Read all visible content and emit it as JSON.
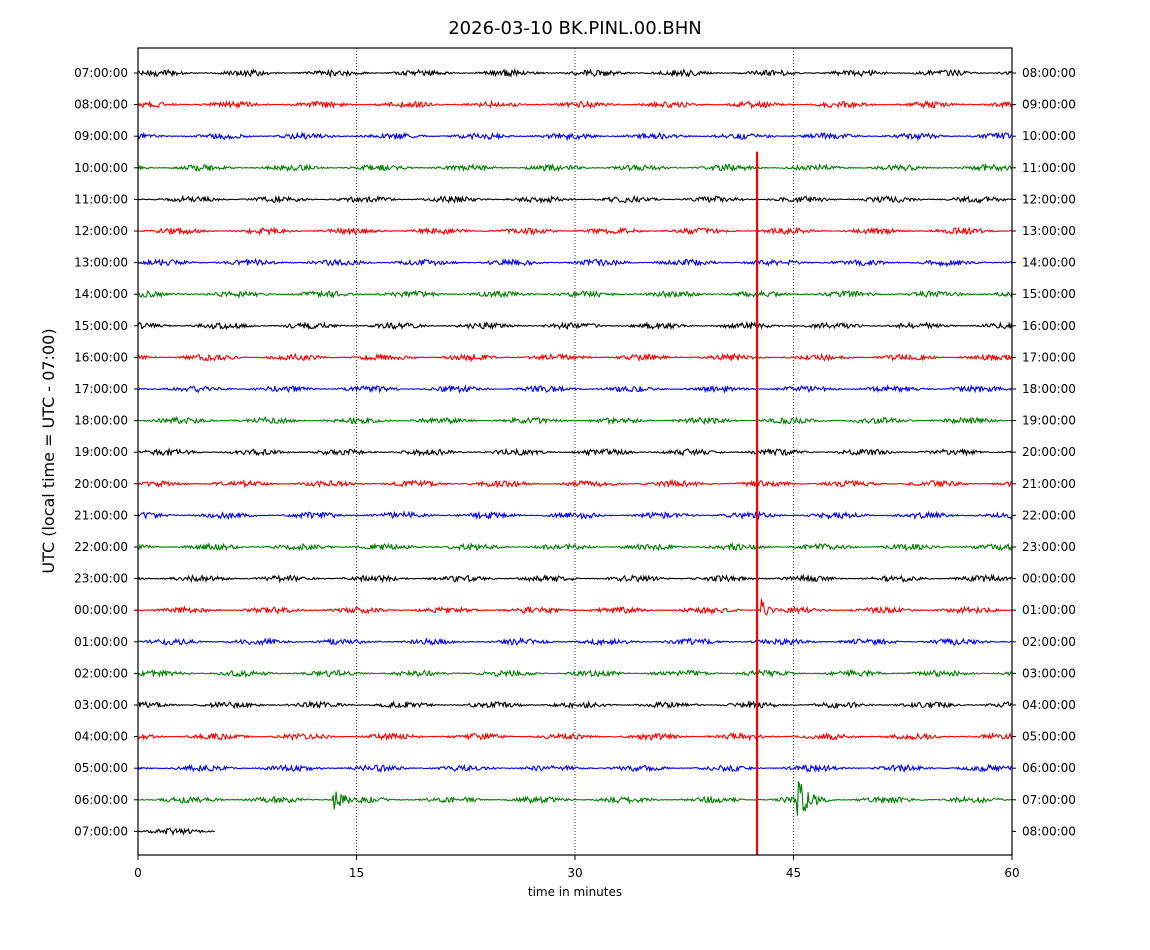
{
  "chart_data": {
    "type": "line",
    "title": "2026-03-10 BK.PINL.00.BHN",
    "xlabel": "time in minutes",
    "ylabel": "UTC (local time = UTC - 07:00)",
    "xlim": [
      0,
      60
    ],
    "xticks": [
      "0",
      "15",
      "30",
      "45",
      "60"
    ],
    "grid": "vertical dotted at 15, 30, 45",
    "trace_colors": [
      "#000000",
      "#ff0000",
      "#0000ff",
      "#008000"
    ],
    "event_marker": {
      "x_minutes": 42.5,
      "color": "#ff0000",
      "from_row": 3,
      "to_row": 25
    },
    "rows": [
      {
        "left": "07:00:00",
        "right": "08:00:00",
        "color": "#000000",
        "end_min": 60
      },
      {
        "left": "08:00:00",
        "right": "09:00:00",
        "color": "#ff0000",
        "end_min": 60
      },
      {
        "left": "09:00:00",
        "right": "10:00:00",
        "color": "#0000ff",
        "end_min": 60
      },
      {
        "left": "10:00:00",
        "right": "11:00:00",
        "color": "#008000",
        "end_min": 60
      },
      {
        "left": "11:00:00",
        "right": "12:00:00",
        "color": "#000000",
        "end_min": 60
      },
      {
        "left": "12:00:00",
        "right": "13:00:00",
        "color": "#ff0000",
        "end_min": 60
      },
      {
        "left": "13:00:00",
        "right": "14:00:00",
        "color": "#0000ff",
        "end_min": 60
      },
      {
        "left": "14:00:00",
        "right": "15:00:00",
        "color": "#008000",
        "end_min": 60
      },
      {
        "left": "15:00:00",
        "right": "16:00:00",
        "color": "#000000",
        "end_min": 60
      },
      {
        "left": "16:00:00",
        "right": "17:00:00",
        "color": "#ff0000",
        "end_min": 60
      },
      {
        "left": "17:00:00",
        "right": "18:00:00",
        "color": "#0000ff",
        "end_min": 60
      },
      {
        "left": "18:00:00",
        "right": "19:00:00",
        "color": "#008000",
        "end_min": 60
      },
      {
        "left": "19:00:00",
        "right": "20:00:00",
        "color": "#000000",
        "end_min": 60
      },
      {
        "left": "20:00:00",
        "right": "21:00:00",
        "color": "#ff0000",
        "end_min": 60
      },
      {
        "left": "21:00:00",
        "right": "22:00:00",
        "color": "#0000ff",
        "end_min": 60
      },
      {
        "left": "22:00:00",
        "right": "23:00:00",
        "color": "#008000",
        "end_min": 60
      },
      {
        "left": "23:00:00",
        "right": "00:00:00",
        "color": "#000000",
        "end_min": 60
      },
      {
        "left": "00:00:00",
        "right": "01:00:00",
        "color": "#ff0000",
        "end_min": 60,
        "bursts": [
          {
            "t": 42.8,
            "amp": 2.2,
            "dur": 1.0
          }
        ]
      },
      {
        "left": "01:00:00",
        "right": "02:00:00",
        "color": "#0000ff",
        "end_min": 60
      },
      {
        "left": "02:00:00",
        "right": "03:00:00",
        "color": "#008000",
        "end_min": 60
      },
      {
        "left": "03:00:00",
        "right": "04:00:00",
        "color": "#000000",
        "end_min": 60
      },
      {
        "left": "04:00:00",
        "right": "05:00:00",
        "color": "#ff0000",
        "end_min": 60
      },
      {
        "left": "05:00:00",
        "right": "06:00:00",
        "color": "#0000ff",
        "end_min": 60
      },
      {
        "left": "06:00:00",
        "right": "07:00:00",
        "color": "#008000",
        "end_min": 60,
        "bursts": [
          {
            "t": 13.5,
            "amp": 2.4,
            "dur": 1.3
          },
          {
            "t": 45.3,
            "amp": 3.4,
            "dur": 2.2
          }
        ]
      },
      {
        "left": "07:00:00",
        "right": "08:00:00",
        "color": "#000000",
        "end_min": 5.3
      }
    ]
  }
}
